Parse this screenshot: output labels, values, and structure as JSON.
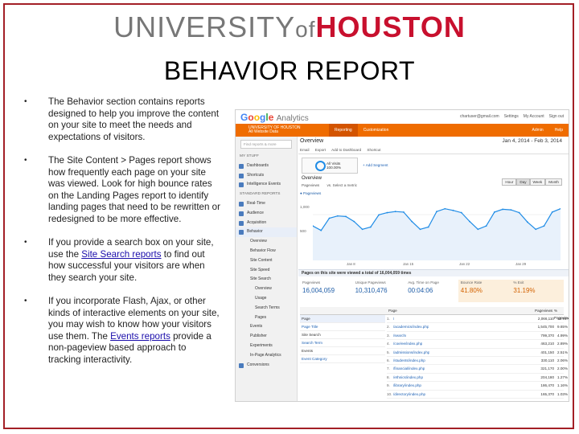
{
  "logo": {
    "university": "UNIVERSITY",
    "of": "of",
    "houston": "HOUSTON"
  },
  "slide_title": "BEHAVIOR REPORT",
  "bullets": {
    "b1": "The Behavior section contains reports designed to help you improve the content on your site to meet the needs and expectations of visitors.",
    "b2": "The Site Content > Pages report shows how frequently each page on your site was viewed. Look for high bounce rates on the Landing Pages report to identify landing pages that need to be rewritten or redesigned to be more effective.",
    "b3_pre": "If you provide a search box on your site, use the ",
    "b3_link": "Site Search reports",
    "b3_post": " to find out how successful your visitors are when they search your site.",
    "b4_pre": "If you incorporate Flash, Ajax, or other kinds of interactive elements on your site, you may wish to know how your visitors use them. The ",
    "b4_link": "Events reports",
    "b4_post": " provide a non-pageview based approach to tracking interactivity."
  },
  "ga": {
    "colors": {
      "orange_bar": "#ef6c00",
      "accent_blue": "#1f8ce6",
      "brand_red": "#c8102e"
    },
    "logo_google": [
      "G",
      "o",
      "o",
      "g",
      "l",
      "e"
    ],
    "logo_analytics": "Analytics",
    "top_links": [
      "chartuser@gmail.com",
      "Settings",
      "My Account",
      "Sign out"
    ],
    "account": "UNIVERSITY OF HOUSTON",
    "account_sub": "All Website Data",
    "nav_tabs": [
      "Reporting",
      "Customization"
    ],
    "nav_right": [
      "Admin",
      "Help"
    ],
    "search_placeholder": "Find reports & more",
    "sidebar": [
      "MY STUFF",
      "Dashboards",
      "Shortcuts",
      "Intelligence Events",
      "STANDARD REPORTS",
      "Real-Time",
      "Audience",
      "Acquisition",
      "Behavior",
      "Overview",
      "Behavior Flow",
      "Site Content",
      "Site Speed",
      "Site Search",
      "Overview",
      "Usage",
      "Search Terms",
      "Pages",
      "Events",
      "Publisher",
      "Experiments",
      "In-Page Analytics",
      "Conversions"
    ],
    "overview_title": "Overview",
    "date_range": "Jan 4, 2014 - Feb 3, 2014",
    "toolbar": [
      "Email",
      "Export",
      "Add to Dashboard",
      "Shortcut"
    ],
    "segment_label": "All Visits",
    "segment_sub": "100.00%",
    "add_segment": "+ Add Segment",
    "overview_tab": "Overview",
    "ctrls": [
      "Pageviews",
      "vs. Select a metric"
    ],
    "time_buttons": [
      "Hour",
      "Day",
      "Week",
      "Month"
    ],
    "time_active": "Day",
    "chart_legend": "● Pageviews",
    "y_ticks": [
      "1,000",
      "500"
    ],
    "x_ticks": [
      "Jan 8",
      "Jan 15",
      "Jan 22",
      "Jan 29"
    ],
    "banner": "Pages on this site were viewed a total of 16,004,059 times",
    "metrics": [
      {
        "label": "Pageviews",
        "value": "16,004,059"
      },
      {
        "label": "Unique Pageviews",
        "value": "10,310,476"
      },
      {
        "label": "Avg. Time on Page",
        "value": "00:04:06"
      },
      {
        "label": "Bounce Rate",
        "value": "41.80%"
      },
      {
        "label": "% Exit",
        "value": "31.19%"
      }
    ],
    "table_head": [
      "Page",
      "Pageviews",
      "% Pageviews"
    ],
    "left_col": [
      "Page",
      "Page Title",
      "Site Search",
      "Search Term",
      "Events",
      "Event Category"
    ],
    "rows": [
      {
        "idx": "1.",
        "page": "/",
        "pv": "2,066,110",
        "pct": "12.91%"
      },
      {
        "idx": "2.",
        "page": "/academics/index.php",
        "pv": "1,545,700",
        "pct": "9.65%"
      },
      {
        "idx": "3.",
        "page": "/search/",
        "pv": "799,370",
        "pct": "4.99%"
      },
      {
        "idx": "4.",
        "page": "/coe/ee/index.php",
        "pv": "463,210",
        "pct": "2.89%"
      },
      {
        "idx": "5.",
        "page": "/admissions/index.php",
        "pv": "401,150",
        "pct": "2.51%"
      },
      {
        "idx": "6.",
        "page": "/students/index.php",
        "pv": "330,110",
        "pct": "2.06%"
      },
      {
        "idx": "7.",
        "page": "/financial/index.php",
        "pv": "321,170",
        "pct": "2.00%"
      },
      {
        "idx": "8.",
        "page": "/ethnics/index.php",
        "pv": "204,180",
        "pct": "1.27%"
      },
      {
        "idx": "9.",
        "page": "/library/index.php",
        "pv": "186,470",
        "pct": "1.16%"
      },
      {
        "idx": "10.",
        "page": "/directory/index.php",
        "pv": "165,370",
        "pct": "1.03%"
      }
    ]
  },
  "chart_data": {
    "type": "line",
    "title": "",
    "xlabel": "",
    "ylabel": "",
    "series": [
      {
        "name": "Pageviews",
        "values": [
          620,
          540,
          760,
          800,
          790,
          700,
          560,
          600,
          820,
          860,
          880,
          870,
          700,
          560,
          600,
          880,
          930,
          900,
          860,
          700,
          560,
          620,
          870,
          920,
          910,
          860,
          690,
          560,
          620,
          870,
          930
        ]
      }
    ],
    "ylim": [
      0,
      1100
    ],
    "grid": true
  }
}
